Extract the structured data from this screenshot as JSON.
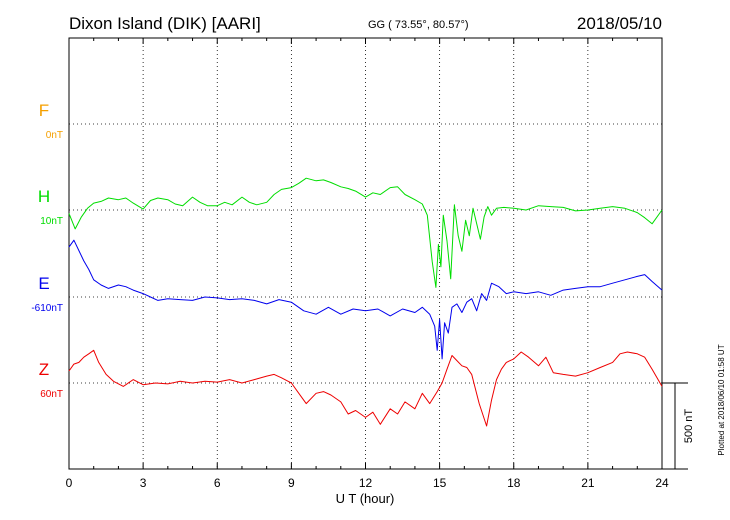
{
  "header": {
    "station": "Dixon Island (DIK)  [AARI]",
    "coords": "GG ( 73.55°,  80.57°)",
    "date": "2018/05/10"
  },
  "footer": {
    "xlabel": "U T (hour)",
    "plotted": "Plotted at 2018/06/10 01:58 UT",
    "scale_label": "500 nT"
  },
  "chart_data": {
    "type": "line",
    "title": "Dixon Island (DIK)  [AARI]",
    "xlabel": "U T (hour)",
    "ylabel": "",
    "xlim": [
      0,
      24
    ],
    "xticks": [
      "0",
      "3",
      "6",
      "9",
      "12",
      "15",
      "18",
      "21",
      "24"
    ],
    "grid": true,
    "scale_bar_nT": 500,
    "series": [
      {
        "name": "F",
        "baseline_label": "0nT",
        "color": "#f5a000",
        "x": [],
        "y": []
      },
      {
        "name": "H",
        "baseline_label": "10nT",
        "color": "#00dd00",
        "x": [
          0,
          0.25,
          0.5,
          0.75,
          1,
          1.3,
          1.6,
          2,
          2.3,
          2.6,
          3,
          3.3,
          3.6,
          4,
          4.3,
          4.6,
          5,
          5.3,
          5.6,
          6,
          6.3,
          6.6,
          7,
          7.3,
          7.6,
          8,
          8.3,
          8.6,
          9,
          9.3,
          9.6,
          10,
          10.3,
          10.6,
          11,
          11.3,
          11.6,
          12,
          12.3,
          12.6,
          13,
          13.3,
          13.6,
          14,
          14.3,
          14.5,
          14.7,
          14.85,
          14.95,
          15.05,
          15.15,
          15.3,
          15.45,
          15.6,
          15.75,
          15.9,
          16.05,
          16.2,
          16.35,
          16.5,
          16.65,
          16.8,
          16.95,
          17.1,
          17.3,
          17.6,
          18,
          18.5,
          19,
          19.5,
          20,
          20.5,
          21,
          21.5,
          22,
          22.5,
          23,
          23.3,
          23.6,
          24
        ],
        "y": [
          -20,
          -110,
          -40,
          10,
          40,
          50,
          70,
          60,
          70,
          40,
          5,
          55,
          70,
          60,
          35,
          25,
          75,
          45,
          25,
          25,
          45,
          30,
          75,
          45,
          30,
          45,
          90,
          120,
          130,
          155,
          185,
          170,
          175,
          160,
          135,
          125,
          110,
          75,
          100,
          90,
          130,
          135,
          90,
          60,
          35,
          -30,
          -300,
          -450,
          -200,
          -330,
          -30,
          -180,
          -400,
          30,
          -150,
          -240,
          -60,
          -150,
          10,
          -80,
          -170,
          -40,
          20,
          -30,
          10,
          15,
          10,
          0,
          25,
          20,
          15,
          -5,
          0,
          10,
          20,
          10,
          -15,
          -45,
          -80,
          0
        ]
      },
      {
        "name": "E",
        "baseline_label": "-610nT",
        "color": "#0000ee",
        "x": [
          0,
          0.2,
          0.4,
          0.6,
          0.8,
          1,
          1.3,
          1.6,
          2,
          2.3,
          2.6,
          3,
          3.3,
          3.6,
          4,
          4.5,
          5,
          5.5,
          6,
          6.5,
          7,
          7.5,
          8,
          8.5,
          9,
          9.5,
          10,
          10.5,
          11,
          11.5,
          12,
          12.5,
          13,
          13.5,
          14,
          14.3,
          14.6,
          14.8,
          14.9,
          15,
          15.1,
          15.2,
          15.35,
          15.5,
          15.7,
          15.9,
          16.1,
          16.3,
          16.5,
          16.7,
          16.9,
          17.1,
          17.4,
          17.7,
          18,
          18.5,
          19,
          19.5,
          20,
          20.5,
          21,
          21.5,
          22,
          22.5,
          23,
          23.3,
          23.6,
          24
        ],
        "y": [
          290,
          330,
          270,
          210,
          160,
          100,
          70,
          50,
          70,
          60,
          40,
          20,
          0,
          -20,
          -10,
          -15,
          -20,
          0,
          -5,
          -15,
          -10,
          -20,
          -40,
          -15,
          -30,
          -80,
          -100,
          -60,
          -100,
          -70,
          -80,
          -70,
          -110,
          -70,
          -90,
          -60,
          -100,
          -170,
          -310,
          -130,
          -360,
          -150,
          -210,
          -60,
          -40,
          -90,
          -30,
          -10,
          -80,
          20,
          -20,
          80,
          60,
          20,
          30,
          20,
          30,
          10,
          40,
          50,
          60,
          60,
          80,
          100,
          120,
          130,
          90,
          40
        ]
      },
      {
        "name": "Z",
        "baseline_label": "60nT",
        "color": "#ee0000",
        "x": [
          0,
          0.2,
          0.4,
          0.6,
          0.8,
          1,
          1.2,
          1.5,
          1.8,
          2.2,
          2.6,
          3,
          3.5,
          4,
          4.5,
          5,
          5.5,
          6,
          6.5,
          7,
          7.5,
          8,
          8.3,
          8.6,
          9,
          9.3,
          9.6,
          10,
          10.3,
          10.6,
          11,
          11.3,
          11.6,
          12,
          12.3,
          12.6,
          13,
          13.3,
          13.6,
          14,
          14.3,
          14.6,
          14.9,
          15.1,
          15.3,
          15.5,
          15.7,
          15.9,
          16.1,
          16.3,
          16.6,
          16.9,
          17.1,
          17.3,
          17.5,
          17.7,
          18,
          18.3,
          18.6,
          19,
          19.3,
          19.6,
          20,
          20.5,
          21,
          21.5,
          22,
          22.3,
          22.6,
          23,
          23.3,
          23.6,
          24
        ],
        "y": [
          70,
          110,
          120,
          150,
          170,
          190,
          120,
          50,
          10,
          -20,
          20,
          -10,
          0,
          -5,
          10,
          0,
          10,
          5,
          20,
          0,
          20,
          40,
          50,
          30,
          0,
          -60,
          -120,
          -60,
          -50,
          -70,
          -110,
          -180,
          -160,
          -200,
          -170,
          -240,
          -150,
          -180,
          -110,
          -150,
          -60,
          -120,
          -50,
          0,
          80,
          160,
          130,
          100,
          90,
          50,
          -120,
          -250,
          -100,
          20,
          80,
          120,
          140,
          180,
          150,
          100,
          150,
          60,
          50,
          40,
          60,
          90,
          120,
          170,
          180,
          170,
          150,
          80,
          -20
        ]
      }
    ]
  }
}
